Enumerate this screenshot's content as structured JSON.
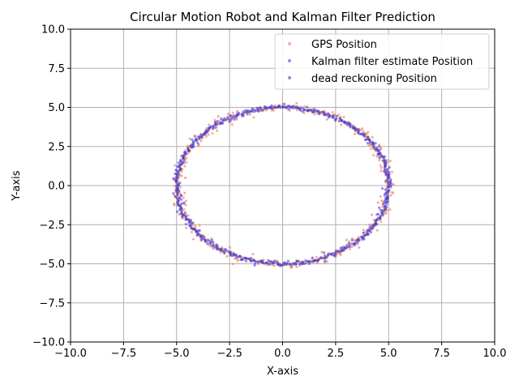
{
  "chart_data": {
    "type": "scatter",
    "title": "Circular Motion Robot and Kalman Filter Prediction",
    "xlabel": "X-axis",
    "ylabel": "Y-axis",
    "xlim": [
      -10,
      10
    ],
    "ylim": [
      -10,
      10
    ],
    "x_ticks": [
      -10.0,
      -7.5,
      -5.0,
      -2.5,
      0.0,
      2.5,
      5.0,
      7.5,
      10.0
    ],
    "y_ticks": [
      -10.0,
      -7.5,
      -5.0,
      -2.5,
      0.0,
      2.5,
      5.0,
      7.5,
      10.0
    ],
    "x_tick_labels": [
      "−10.0",
      "−7.5",
      "−5.0",
      "−2.5",
      "0.0",
      "2.5",
      "5.0",
      "7.5",
      "10.0"
    ],
    "y_tick_labels": [
      "−10.0",
      "−7.5",
      "−5.0",
      "−2.5",
      "0.0",
      "2.5",
      "5.0",
      "7.5",
      "10.0"
    ],
    "grid": true,
    "legend_position": "top-right",
    "path": {
      "shape": "circle",
      "center": [
        0,
        0
      ],
      "radius": 5.0
    },
    "series": [
      {
        "name": "GPS Position",
        "color": "#f08060",
        "noise": 0.15,
        "point_count": 360
      },
      {
        "name": "Kalman filter estimate Position",
        "color": "#4040ff",
        "noise": 0.08,
        "point_count": 360
      },
      {
        "name": "dead reckoning Position",
        "color": "#5a3a9a",
        "noise": 0.05,
        "point_count": 360
      }
    ]
  }
}
